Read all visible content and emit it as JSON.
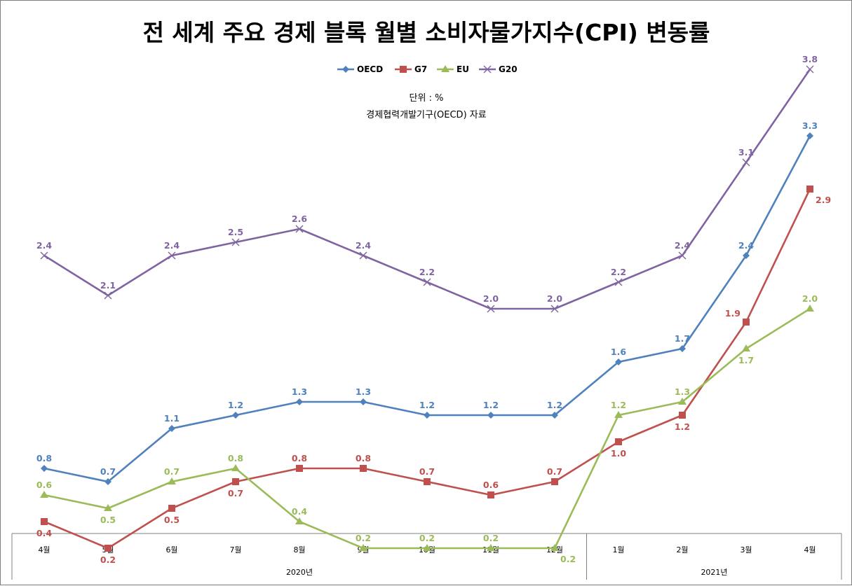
{
  "chart_data": {
    "type": "line",
    "title": "전 세계 주요 경제 블록 월별 소비자물가지수(CPI) 변동률",
    "notes": [
      "단위 : %",
      "경제협력개발기구(OECD) 자료"
    ],
    "categories": [
      "4월",
      "5월",
      "6월",
      "7월",
      "8월",
      "9월",
      "10월",
      "11월",
      "12월",
      "1월",
      "2월",
      "3월",
      "4월"
    ],
    "year_groups": [
      {
        "label": "2020년",
        "count": 9
      },
      {
        "label": "2021년",
        "count": 4
      }
    ],
    "ylim": [
      0,
      4.0
    ],
    "grid": false,
    "legend_position": "top",
    "series": [
      {
        "name": "OECD",
        "color": "#4F81BD",
        "marker": "diamond",
        "values": [
          0.8,
          0.7,
          1.1,
          1.2,
          1.3,
          1.3,
          1.2,
          1.2,
          1.2,
          1.6,
          1.7,
          2.4,
          3.3
        ],
        "label_pos": [
          "above",
          "above",
          "above",
          "above",
          "above",
          "above",
          "above",
          "above",
          "above",
          "above",
          "above",
          "above",
          "above"
        ]
      },
      {
        "name": "G7",
        "color": "#C0504D",
        "marker": "square",
        "values": [
          0.4,
          0.2,
          0.5,
          0.7,
          0.8,
          0.8,
          0.7,
          0.6,
          0.7,
          1.0,
          1.2,
          1.9,
          2.9
        ],
        "label_pos": [
          "below",
          "below",
          "below",
          "below",
          "above",
          "above",
          "above",
          "above",
          "above",
          "below",
          "below",
          "left",
          "right"
        ]
      },
      {
        "name": "EU",
        "color": "#9BBB59",
        "marker": "triangle",
        "values": [
          0.6,
          0.5,
          0.7,
          0.8,
          0.4,
          0.2,
          0.2,
          0.2,
          0.2,
          1.2,
          1.3,
          1.7,
          2.0
        ],
        "label_pos": [
          "above",
          "below",
          "above",
          "above",
          "above",
          "above",
          "above",
          "above",
          "right",
          "above",
          "above",
          "below",
          "above"
        ]
      },
      {
        "name": "G20",
        "color": "#8064A2",
        "marker": "x",
        "values": [
          2.4,
          2.1,
          2.4,
          2.5,
          2.6,
          2.4,
          2.2,
          2.0,
          2.0,
          2.2,
          2.4,
          3.1,
          3.8
        ],
        "label_pos": [
          "above",
          "above",
          "above",
          "above",
          "above",
          "above",
          "above",
          "above",
          "above",
          "above",
          "above",
          "above",
          "above"
        ]
      }
    ]
  }
}
